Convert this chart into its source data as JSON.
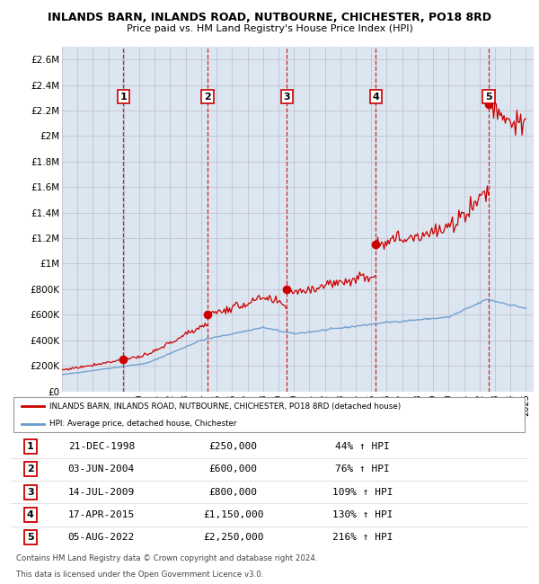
{
  "title1": "INLANDS BARN, INLANDS ROAD, NUTBOURNE, CHICHESTER, PO18 8RD",
  "title2": "Price paid vs. HM Land Registry's House Price Index (HPI)",
  "legend_label1": "INLANDS BARN, INLANDS ROAD, NUTBOURNE, CHICHESTER, PO18 8RD (detached house)",
  "legend_label2": "HPI: Average price, detached house, Chichester",
  "footer1": "Contains HM Land Registry data © Crown copyright and database right 2024.",
  "footer2": "This data is licensed under the Open Government Licence v3.0.",
  "sale_dates_num": [
    1998.97,
    2004.42,
    2009.54,
    2015.29,
    2022.59
  ],
  "sale_prices": [
    250000,
    600000,
    800000,
    1150000,
    2250000
  ],
  "sale_labels": [
    "1",
    "2",
    "3",
    "4",
    "5"
  ],
  "sale_info": [
    [
      "1",
      "21-DEC-1998",
      "£250,000",
      "44% ↑ HPI"
    ],
    [
      "2",
      "03-JUN-2004",
      "£600,000",
      "76% ↑ HPI"
    ],
    [
      "3",
      "14-JUL-2009",
      "£800,000",
      "109% ↑ HPI"
    ],
    [
      "4",
      "17-APR-2015",
      "£1,150,000",
      "130% ↑ HPI"
    ],
    [
      "5",
      "05-AUG-2022",
      "£2,250,000",
      "216% ↑ HPI"
    ]
  ],
  "yticks": [
    0,
    200000,
    400000,
    600000,
    800000,
    1000000,
    1200000,
    1400000,
    1600000,
    1800000,
    2000000,
    2200000,
    2400000,
    2600000
  ],
  "ytick_labels": [
    "£0",
    "£200K",
    "£400K",
    "£600K",
    "£800K",
    "£1M",
    "£1.2M",
    "£1.4M",
    "£1.6M",
    "£1.8M",
    "£2M",
    "£2.2M",
    "£2.4M",
    "£2.6M"
  ],
  "ylim": [
    0,
    2700000
  ],
  "xlim_start": 1995.0,
  "xlim_end": 2025.5,
  "hpi_color": "#6699cc",
  "sale_color": "#cc0000",
  "bg_color": "#dce6f0",
  "plot_bg": "#ffffff",
  "vline_color": "#cc0000",
  "grid_color": "#bbbbcc"
}
